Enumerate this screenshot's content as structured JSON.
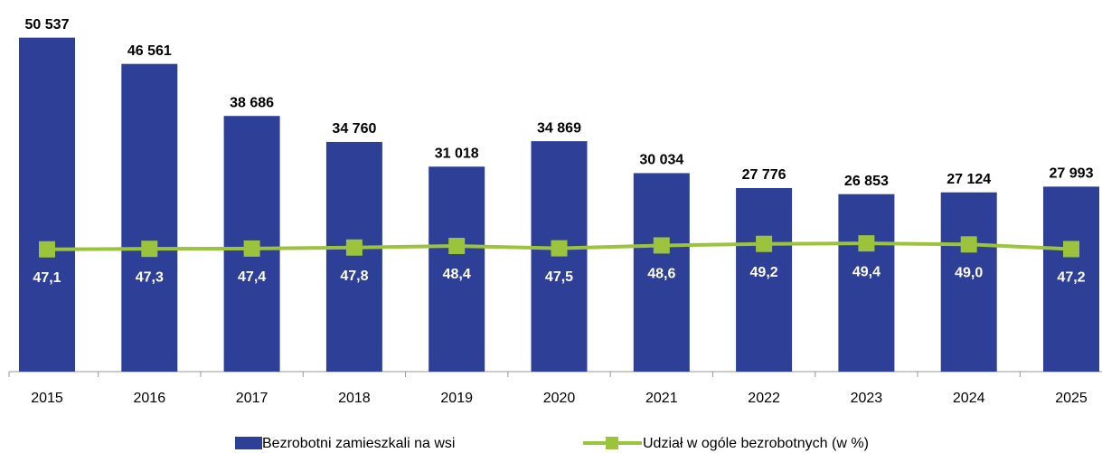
{
  "chart_data": {
    "type": "bar_line",
    "categories": [
      "2015",
      "2016",
      "2017",
      "2018",
      "2019",
      "2020",
      "2021",
      "2022",
      "2023",
      "2024",
      "2025"
    ],
    "series": [
      {
        "name": "Bezrobotni zamieszkali na wsi",
        "type": "bar",
        "color": "#2e3f98",
        "values": [
          50537,
          46561,
          38686,
          34760,
          31018,
          34869,
          30034,
          27776,
          26853,
          27124,
          27993
        ],
        "value_labels": [
          "50 537",
          "46 561",
          "38 686",
          "34 760",
          "31 018",
          "34 869",
          "30 034",
          "27 776",
          "26 853",
          "27 124",
          "27 993"
        ]
      },
      {
        "name": "Udział w ogóle bezrobotnych (w %)",
        "type": "line",
        "axis": "y2",
        "color": "#9bc33c",
        "values": [
          47.1,
          47.3,
          47.4,
          47.8,
          48.4,
          47.5,
          48.6,
          49.2,
          49.4,
          49.0,
          47.2
        ],
        "value_labels": [
          "47,1",
          "47,3",
          "47,4",
          "47,8",
          "48,4",
          "47,5",
          "48,6",
          "49,2",
          "49,4",
          "49,0",
          "47,2"
        ]
      }
    ],
    "ylim": [
      0,
      55000
    ],
    "y2lim": [
      0,
      140
    ]
  }
}
